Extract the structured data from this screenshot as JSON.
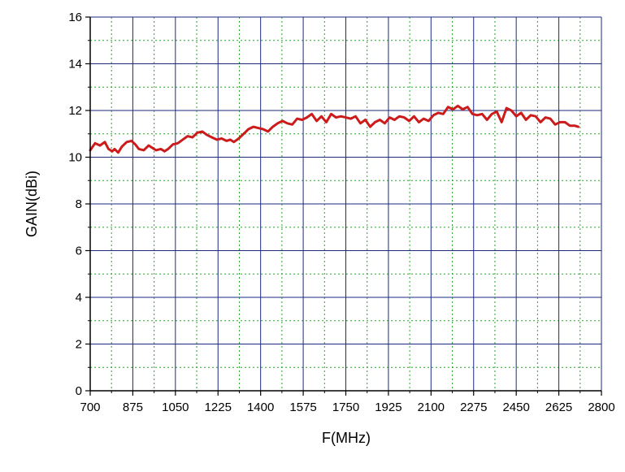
{
  "chart_data": {
    "type": "line",
    "xlabel": "F(MHz)",
    "ylabel": "GAIN(dBi)",
    "xlim": [
      700,
      2800
    ],
    "ylim": [
      0,
      16
    ],
    "x_ticks": [
      700,
      875,
      1050,
      1225,
      1400,
      1575,
      1750,
      1925,
      2100,
      2275,
      2450,
      2625,
      2800
    ],
    "y_ticks": [
      0,
      2,
      4,
      6,
      8,
      10,
      12,
      14,
      16
    ],
    "major_grid": true,
    "minor_grid": true,
    "colors": {
      "series": "#cc1b1b",
      "major_grid": "#1c2a80",
      "minor_grid": "#25a625"
    },
    "series": [
      {
        "x": [
          700,
          720,
          740,
          760,
          775,
          790,
          800,
          815,
          830,
          850,
          870,
          885,
          900,
          920,
          940,
          955,
          970,
          990,
          1005,
          1020,
          1040,
          1060,
          1080,
          1100,
          1120,
          1140,
          1160,
          1180,
          1200,
          1220,
          1240,
          1260,
          1275,
          1290,
          1310,
          1330,
          1350,
          1370,
          1390,
          1410,
          1430,
          1450,
          1470,
          1490,
          1510,
          1530,
          1550,
          1570,
          1590,
          1610,
          1630,
          1650,
          1670,
          1690,
          1710,
          1730,
          1750,
          1770,
          1790,
          1810,
          1830,
          1850,
          1870,
          1890,
          1910,
          1930,
          1950,
          1970,
          1990,
          2010,
          2030,
          2050,
          2070,
          2090,
          2110,
          2130,
          2150,
          2170,
          2190,
          2210,
          2230,
          2250,
          2270,
          2290,
          2310,
          2330,
          2350,
          2370,
          2390,
          2410,
          2430,
          2450,
          2470,
          2490,
          2510,
          2530,
          2550,
          2570,
          2590,
          2610,
          2630,
          2650,
          2670,
          2690,
          2705
        ],
        "y": [
          10.3,
          10.6,
          10.5,
          10.65,
          10.35,
          10.25,
          10.35,
          10.2,
          10.45,
          10.65,
          10.7,
          10.55,
          10.35,
          10.3,
          10.5,
          10.4,
          10.3,
          10.35,
          10.25,
          10.35,
          10.55,
          10.6,
          10.75,
          10.9,
          10.85,
          11.05,
          11.1,
          10.95,
          10.85,
          10.75,
          10.8,
          10.7,
          10.75,
          10.65,
          10.8,
          11.0,
          11.2,
          11.3,
          11.25,
          11.2,
          11.1,
          11.3,
          11.45,
          11.55,
          11.45,
          11.4,
          11.65,
          11.6,
          11.7,
          11.85,
          11.55,
          11.75,
          11.5,
          11.85,
          11.7,
          11.75,
          11.7,
          11.65,
          11.75,
          11.45,
          11.6,
          11.3,
          11.5,
          11.6,
          11.45,
          11.7,
          11.6,
          11.75,
          11.7,
          11.55,
          11.75,
          11.5,
          11.65,
          11.55,
          11.8,
          11.9,
          11.85,
          12.15,
          12.05,
          12.2,
          12.05,
          12.15,
          11.85,
          11.8,
          11.85,
          11.6,
          11.85,
          11.95,
          11.5,
          12.1,
          12.0,
          11.75,
          11.9,
          11.6,
          11.8,
          11.75,
          11.5,
          11.7,
          11.65,
          11.4,
          11.5,
          11.5,
          11.35,
          11.35,
          11.3
        ]
      }
    ]
  }
}
